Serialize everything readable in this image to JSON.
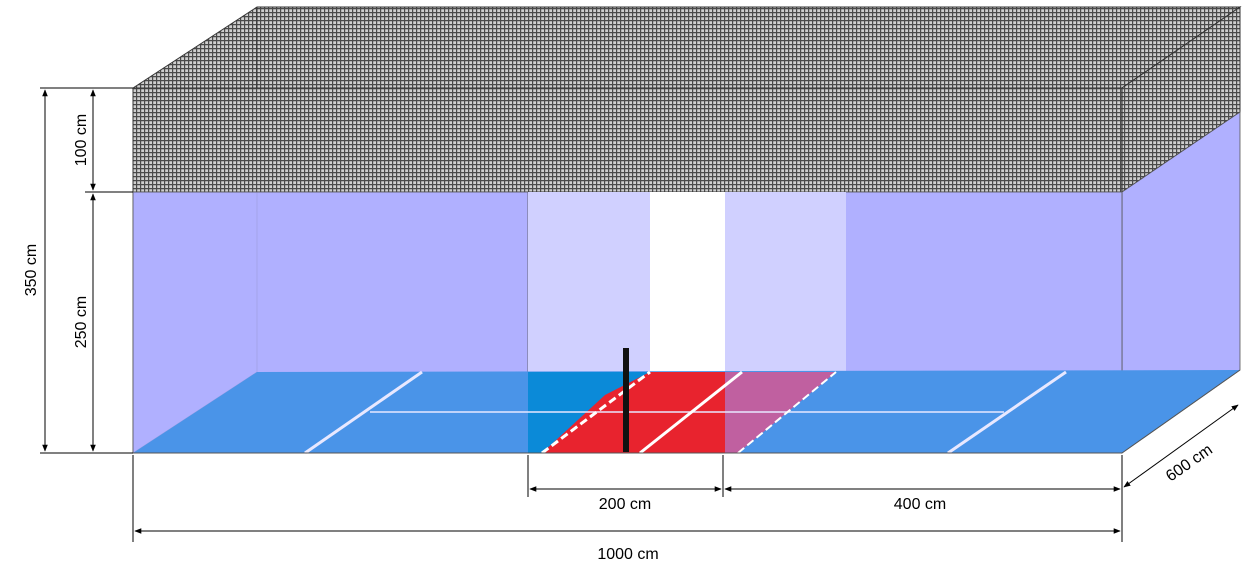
{
  "dimensions": {
    "total_height": "350 cm",
    "net_height": "100 cm",
    "wall_height": "250 cm",
    "center_width": "200 cm",
    "side_width": "400 cm",
    "total_length": "1000 cm",
    "depth": "600 cm"
  },
  "colors": {
    "wall": "#b0b0ff",
    "wall_light": "#d0d0ff",
    "floor": "#4a94e8",
    "floor_center": "#0b8ad8",
    "court_red": "#e8232e",
    "court_pink": "#c060a0",
    "net_dark": "#555555",
    "net_bg": "#cfcfcf"
  }
}
